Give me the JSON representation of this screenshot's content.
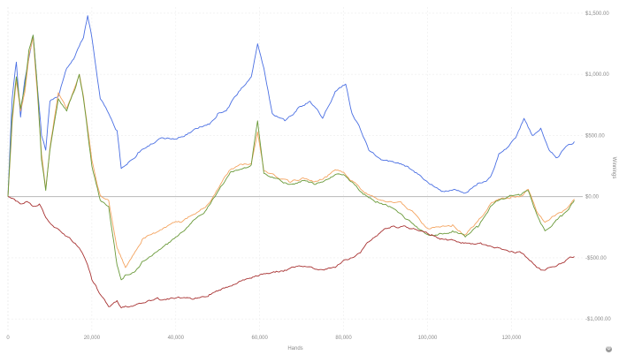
{
  "chart_data": {
    "type": "line",
    "title": "",
    "xlabel": "Hands",
    "ylabel": "Winnings",
    "xlim": [
      0,
      137000
    ],
    "ylim": [
      -1100,
      1550
    ],
    "x_ticks": [
      0,
      20000,
      40000,
      60000,
      80000,
      100000,
      120000
    ],
    "x_tick_labels": [
      "0",
      "20,000",
      "40,000",
      "60,000",
      "80,000",
      "100,000",
      "120,000"
    ],
    "y_ticks": [
      1500,
      1000,
      500,
      0,
      -500,
      -1000
    ],
    "y_tick_labels": [
      "$1,500.00",
      "$1,000.00",
      "$500.00",
      "$0.00",
      "-$500.00",
      "-$1,000.00"
    ],
    "grid": true,
    "series": [
      {
        "color": "#4a6fe3",
        "x": [
          0,
          1000,
          2000,
          3000,
          4000,
          6000,
          7000,
          8000,
          9000,
          10000,
          12000,
          14000,
          16000,
          18000,
          19000,
          20000,
          22000,
          24000,
          26000,
          27000,
          29000,
          31000,
          34000,
          37000,
          40000,
          43000,
          46000,
          48000,
          50000,
          52000,
          55000,
          58000,
          59500,
          61000,
          63000,
          66000,
          69000,
          72000,
          75000,
          78000,
          80500,
          82000,
          84000,
          86000,
          89000,
          92000,
          95000,
          98000,
          101000,
          104000,
          107000,
          109000,
          112000,
          115000,
          117000,
          119000,
          121000,
          123000,
          125000,
          127000,
          129000,
          131000,
          133000,
          135000
        ],
        "y": [
          0,
          800,
          1100,
          650,
          950,
          1320,
          900,
          500,
          380,
          780,
          820,
          1050,
          1150,
          1300,
          1480,
          1300,
          800,
          680,
          540,
          230,
          290,
          360,
          430,
          480,
          470,
          520,
          570,
          590,
          680,
          700,
          860,
          980,
          1250,
          1050,
          680,
          620,
          720,
          780,
          640,
          860,
          920,
          680,
          550,
          380,
          300,
          280,
          250,
          180,
          100,
          40,
          50,
          30,
          110,
          160,
          350,
          400,
          480,
          640,
          500,
          560,
          380,
          320,
          410,
          450
        ]
      },
      {
        "color": "#f4a460",
        "x": [
          0,
          1000,
          2000,
          3000,
          4000,
          5000,
          6000,
          7000,
          8000,
          9000,
          10000,
          12000,
          14000,
          16000,
          17000,
          18000,
          20000,
          22000,
          24000,
          26000,
          27000,
          28000,
          30000,
          32000,
          35000,
          38000,
          41000,
          44000,
          47000,
          50000,
          53000,
          56000,
          58000,
          59500,
          61000,
          64000,
          67000,
          70000,
          73000,
          76000,
          78000,
          80000,
          82000,
          85000,
          88000,
          91000,
          94000,
          97000,
          100000,
          103000,
          106000,
          109000,
          112000,
          115000,
          117000,
          120000,
          122000,
          124000,
          126000,
          128000,
          130000,
          132000,
          135000
        ],
        "y": [
          0,
          600,
          950,
          700,
          850,
          1150,
          1300,
          850,
          350,
          60,
          400,
          850,
          720,
          900,
          1000,
          820,
          300,
          10,
          -30,
          -420,
          -500,
          -580,
          -470,
          -350,
          -300,
          -240,
          -210,
          -150,
          -90,
          60,
          220,
          260,
          270,
          530,
          210,
          160,
          120,
          150,
          120,
          160,
          220,
          200,
          130,
          30,
          -20,
          -40,
          -60,
          -140,
          -260,
          -250,
          -230,
          -310,
          -200,
          -60,
          -20,
          0,
          0,
          60,
          -120,
          -210,
          -160,
          -130,
          -20
        ]
      },
      {
        "color": "#6a9a3a",
        "x": [
          0,
          1000,
          2000,
          3000,
          4000,
          5000,
          6000,
          7000,
          8000,
          9000,
          10000,
          12000,
          14000,
          16000,
          17000,
          18000,
          20000,
          22000,
          24000,
          26000,
          27000,
          28000,
          30000,
          32000,
          35000,
          38000,
          41000,
          44000,
          47000,
          50000,
          53000,
          56000,
          58000,
          59500,
          61000,
          64000,
          67000,
          70000,
          73000,
          76000,
          78000,
          80000,
          82000,
          85000,
          88000,
          91000,
          94000,
          97000,
          100000,
          103000,
          106000,
          109000,
          112000,
          115000,
          117000,
          120000,
          122000,
          124000,
          126000,
          128000,
          130000,
          132000,
          135000
        ],
        "y": [
          0,
          650,
          980,
          720,
          900,
          1200,
          1320,
          900,
          300,
          50,
          380,
          800,
          700,
          880,
          1000,
          800,
          250,
          -30,
          -80,
          -560,
          -680,
          -640,
          -620,
          -530,
          -460,
          -390,
          -300,
          -200,
          -120,
          40,
          200,
          230,
          260,
          620,
          190,
          150,
          100,
          130,
          100,
          140,
          180,
          180,
          120,
          20,
          -40,
          -80,
          -150,
          -240,
          -310,
          -300,
          -280,
          -330,
          -250,
          -80,
          -30,
          10,
          10,
          50,
          -140,
          -280,
          -220,
          -160,
          -30
        ]
      },
      {
        "color": "#a83232",
        "x": [
          0,
          1500,
          3000,
          4500,
          6000,
          7500,
          9000,
          11000,
          13000,
          15000,
          17000,
          19000,
          20000,
          21000,
          22000,
          24000,
          26000,
          27000,
          29000,
          32000,
          36000,
          40000,
          44000,
          48000,
          52000,
          56000,
          60000,
          63000,
          66000,
          70000,
          74000,
          78000,
          80000,
          82000,
          84000,
          86000,
          88000,
          90000,
          92000,
          95000,
          98000,
          101000,
          104000,
          107000,
          110000,
          113000,
          116000,
          119000,
          122000,
          125000,
          127000,
          129000,
          131000,
          133000,
          135000
        ],
        "y": [
          0,
          -20,
          -60,
          -40,
          -80,
          -60,
          -170,
          -250,
          -300,
          -350,
          -420,
          -560,
          -680,
          -730,
          -800,
          -900,
          -850,
          -910,
          -900,
          -870,
          -840,
          -830,
          -840,
          -800,
          -740,
          -680,
          -640,
          -620,
          -600,
          -570,
          -600,
          -580,
          -520,
          -500,
          -460,
          -370,
          -320,
          -260,
          -240,
          -250,
          -280,
          -310,
          -350,
          -370,
          -380,
          -390,
          -420,
          -440,
          -450,
          -540,
          -600,
          -580,
          -560,
          -520,
          -490
        ]
      }
    ]
  }
}
